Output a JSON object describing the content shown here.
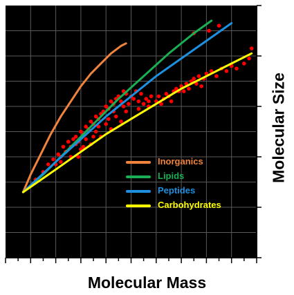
{
  "chart_data": {
    "type": "scatter",
    "title": "",
    "xlabel": "Molecular Mass",
    "ylabel": "Molecular Size",
    "xlim": [
      0,
      100
    ],
    "ylim": [
      0,
      100
    ],
    "tick_labels_shown": false,
    "grid": true,
    "background": "#000000",
    "legend_position": "lower-right",
    "series": [
      {
        "name": "Inorganics",
        "color": "#F0843C",
        "kind": "line",
        "x": [
          7,
          10,
          14,
          18,
          22,
          26,
          30,
          34,
          38,
          42,
          46,
          48
        ],
        "y": [
          26,
          33,
          41,
          49,
          56,
          62,
          68,
          73,
          77,
          81,
          84,
          85
        ]
      },
      {
        "name": "Lipids",
        "color": "#1AAF54",
        "kind": "line",
        "x": [
          7,
          15,
          25,
          35,
          45,
          55,
          65,
          75,
          82
        ],
        "y": [
          26,
          33,
          43,
          53,
          63,
          72,
          81,
          89,
          94
        ]
      },
      {
        "name": "Peptides",
        "color": "#1E90E0",
        "kind": "line",
        "x": [
          7,
          20,
          30,
          40,
          50,
          60,
          70,
          80,
          90
        ],
        "y": [
          26,
          38,
          47,
          56,
          64,
          72,
          79,
          86,
          93
        ]
      },
      {
        "name": "Carbohydrates",
        "color": "#FFFF00",
        "kind": "line",
        "x": [
          7,
          20,
          30,
          40,
          50,
          60,
          70,
          80,
          90,
          98
        ],
        "y": [
          26,
          35,
          42,
          49,
          55,
          61,
          67,
          72,
          77,
          81
        ]
      },
      {
        "name": "",
        "color": "#FF0000",
        "kind": "scatter",
        "x": [
          12,
          15,
          17,
          19,
          20,
          21,
          22,
          23,
          24,
          25,
          26,
          27,
          28,
          29,
          30,
          31,
          32,
          33,
          34,
          35,
          36,
          37,
          38,
          39,
          40,
          41,
          42,
          43,
          44,
          45,
          46,
          47,
          48,
          49,
          50,
          51,
          52,
          53,
          54,
          55,
          56,
          57,
          58,
          60,
          62,
          63,
          64,
          65,
          66,
          67,
          68,
          70,
          71,
          72,
          73,
          74,
          75,
          76,
          77,
          78,
          79,
          80,
          82,
          84,
          86,
          88,
          90,
          92,
          95,
          97,
          98,
          22,
          24,
          26,
          28,
          30,
          32,
          34,
          36,
          38,
          40,
          42,
          44,
          46,
          48,
          29,
          31,
          35,
          37,
          41,
          43,
          47,
          53,
          57,
          61,
          69,
          75,
          81,
          85
        ],
        "y": [
          31,
          34,
          37,
          39,
          37,
          41,
          40,
          44,
          42,
          46,
          44,
          47,
          48,
          46,
          50,
          49,
          52,
          51,
          54,
          53,
          56,
          55,
          57,
          58,
          60,
          59,
          62,
          61,
          63,
          64,
          62,
          66,
          65,
          61,
          64,
          63,
          66,
          62,
          65,
          61,
          63,
          60,
          64,
          62,
          61,
          63,
          65,
          64,
          62,
          66,
          67,
          68,
          66,
          69,
          67,
          70,
          71,
          69,
          72,
          68,
          71,
          73,
          74,
          72,
          75,
          74,
          76,
          75,
          77,
          79,
          83,
          38,
          42,
          40,
          45,
          43,
          47,
          45,
          50,
          48,
          53,
          51,
          56,
          54,
          58,
          40,
          44,
          48,
          52,
          55,
          58,
          60,
          59,
          62,
          64,
          66,
          89,
          90,
          92
        ]
      }
    ]
  }
}
